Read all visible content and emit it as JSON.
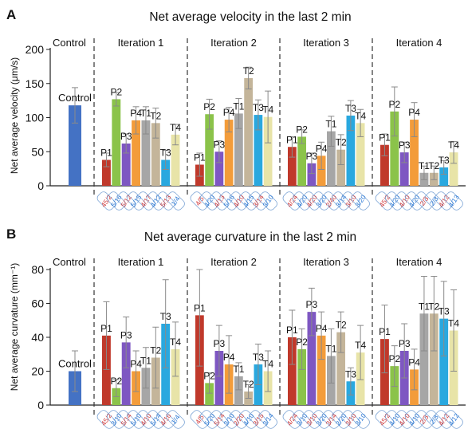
{
  "chart_data": [
    {
      "type": "bar",
      "panel_label": "A",
      "title": "Net average velocity in the last 2 min",
      "ylabel": "Net average velocity (μm/s)",
      "ylim": [
        0,
        200
      ],
      "yticks": [
        0,
        50,
        100,
        150,
        200
      ],
      "groups": [
        {
          "name": "Control",
          "bars": [
            {
              "label": "Control",
              "value": 118,
              "err": 26,
              "color": "#4472c4"
            }
          ],
          "counts": []
        },
        {
          "name": "Iteration 1",
          "bars": [
            {
              "label": "P1",
              "value": 38,
              "err": 10,
              "color": "#c0392b"
            },
            {
              "label": "P2",
              "value": 127,
              "err": 10,
              "color": "#8bc34a"
            },
            {
              "label": "P3",
              "value": 62,
              "err": 14,
              "color": "#7e57c2"
            },
            {
              "label": "P4",
              "value": 96,
              "err": 20,
              "color": "#f39c3a"
            },
            {
              "label": "T1",
              "value": 96,
              "err": 20,
              "color": "#a6a6a6"
            },
            {
              "label": "T2",
              "value": 92,
              "err": 22,
              "color": "#c4b59a"
            },
            {
              "label": "T3",
              "value": 38,
              "err": 14,
              "color": "#29a8df"
            },
            {
              "label": "T4",
              "value": 75,
              "err": 15,
              "color": "#e8e4a8"
            }
          ],
          "counts": [
            "45/2",
            "5/16",
            "5/12",
            "5/15",
            "4/17",
            "4/12",
            "5/13",
            "1/4"
          ]
        },
        {
          "name": "Iteration 2",
          "bars": [
            {
              "label": "P1",
              "value": 31,
              "err": 17,
              "color": "#c0392b"
            },
            {
              "label": "P2",
              "value": 105,
              "err": 22,
              "color": "#8bc34a"
            },
            {
              "label": "P3",
              "value": 50,
              "err": 16,
              "color": "#7e57c2"
            },
            {
              "label": "P4",
              "value": 97,
              "err": 18,
              "color": "#f39c3a"
            },
            {
              "label": "T1",
              "value": 106,
              "err": 22,
              "color": "#a6a6a6"
            },
            {
              "label": "T2",
              "value": 158,
              "err": 16,
              "color": "#c4b59a"
            },
            {
              "label": "T3",
              "value": 104,
              "err": 22,
              "color": "#29a8df"
            },
            {
              "label": "T4",
              "value": 101,
              "err": 38,
              "color": "#e8e4a8"
            }
          ],
          "counts": [
            "4/5",
            "4/20",
            "4/13",
            "5/16",
            "4/10",
            "4/15",
            "3/14",
            "3/10"
          ]
        },
        {
          "name": "Iteration 3",
          "bars": [
            {
              "label": "P1",
              "value": 57,
              "err": 15,
              "color": "#c0392b"
            },
            {
              "label": "P2",
              "value": 72,
              "err": 10,
              "color": "#8bc34a"
            },
            {
              "label": "P3",
              "value": 33,
              "err": 15,
              "color": "#7e57c2"
            },
            {
              "label": "P4",
              "value": 44,
              "err": 20,
              "color": "#f39c3a"
            },
            {
              "label": "T1",
              "value": 80,
              "err": 22,
              "color": "#a6a6a6"
            },
            {
              "label": "T2",
              "value": 53,
              "err": 22,
              "color": "#c4b59a"
            },
            {
              "label": "T3",
              "value": 103,
              "err": 22,
              "color": "#29a8df"
            },
            {
              "label": "T4",
              "value": 92,
              "err": 20,
              "color": "#e8e4a8"
            }
          ],
          "counts": [
            "4/24",
            "4/20",
            "4/20",
            "3/20",
            "2/40",
            "3/14",
            "3/10",
            "3/20"
          ]
        },
        {
          "name": "Iteration 4",
          "bars": [
            {
              "label": "P1",
              "value": 60,
              "err": 16,
              "color": "#c0392b"
            },
            {
              "label": "P2",
              "value": 109,
              "err": 36,
              "color": "#8bc34a"
            },
            {
              "label": "P3",
              "value": 49,
              "err": 15,
              "color": "#7e57c2"
            },
            {
              "label": "P4",
              "value": 97,
              "err": 25,
              "color": "#f39c3a"
            },
            {
              "label": "T1",
              "value": 19,
              "err": 10,
              "color": "#a6a6a6"
            },
            {
              "label": "T2",
              "value": 19,
              "err": 10,
              "color": "#c4b59a"
            },
            {
              "label": "T3",
              "value": 27,
              "err": 10,
              "color": "#29a8df"
            },
            {
              "label": "T4",
              "value": 49,
              "err": 16,
              "color": "#e8e4a8"
            }
          ],
          "counts": [
            "45/2",
            "4/20",
            "4/10",
            "4/20",
            "2/3",
            "2/3",
            "4/12",
            "4/13"
          ]
        }
      ]
    },
    {
      "type": "bar",
      "panel_label": "B",
      "title": "Net average curvature in the last 2 min",
      "ylabel": "Net average curvature (mm⁻¹)",
      "ylim": [
        0,
        80
      ],
      "yticks": [
        0,
        20,
        40,
        60,
        80
      ],
      "groups": [
        {
          "name": "Control",
          "bars": [
            {
              "label": "Control",
              "value": 20,
              "err": 12,
              "color": "#4472c4"
            }
          ],
          "counts": []
        },
        {
          "name": "Iteration 1",
          "bars": [
            {
              "label": "P1",
              "value": 41,
              "err": 20,
              "color": "#c0392b"
            },
            {
              "label": "P2",
              "value": 10,
              "err": 5,
              "color": "#8bc34a"
            },
            {
              "label": "P3",
              "value": 37,
              "err": 15,
              "color": "#7e57c2"
            },
            {
              "label": "P4",
              "value": 20,
              "err": 12,
              "color": "#f39c3a"
            },
            {
              "label": "T1",
              "value": 22,
              "err": 12,
              "color": "#a6a6a6"
            },
            {
              "label": "T2",
              "value": 28,
              "err": 18,
              "color": "#c4b59a"
            },
            {
              "label": "T3",
              "value": 48,
              "err": 26,
              "color": "#29a8df"
            },
            {
              "label": "T4",
              "value": 33,
              "err": 16,
              "color": "#e8e4a8"
            }
          ],
          "counts": [
            "45/2",
            "3/10",
            "5/14",
            "5/10",
            "4/10",
            "5/14",
            "4/16",
            "1/4"
          ]
        },
        {
          "name": "Iteration 2",
          "bars": [
            {
              "label": "P1",
              "value": 53,
              "err": 30,
              "color": "#c0392b"
            },
            {
              "label": "P2",
              "value": 13,
              "err": 6,
              "color": "#8bc34a"
            },
            {
              "label": "P3",
              "value": 32,
              "err": 15,
              "color": "#7e57c2"
            },
            {
              "label": "P4",
              "value": 24,
              "err": 17,
              "color": "#f39c3a"
            },
            {
              "label": "T1",
              "value": 17,
              "err": 8,
              "color": "#a6a6a6"
            },
            {
              "label": "T2",
              "value": 8,
              "err": 4,
              "color": "#c4b59a"
            },
            {
              "label": "T3",
              "value": 24,
              "err": 12,
              "color": "#29a8df"
            },
            {
              "label": "T4",
              "value": 20,
              "err": 12,
              "color": "#e8e4a8"
            }
          ],
          "counts": [
            "4/5",
            "5/20",
            "5/14",
            "3/10",
            "2/20",
            "4/10",
            "3/15",
            "3/14"
          ]
        },
        {
          "name": "Iteration 3",
          "bars": [
            {
              "label": "P1",
              "value": 40,
              "err": 16,
              "color": "#c0392b"
            },
            {
              "label": "P2",
              "value": 33,
              "err": 12,
              "color": "#8bc34a"
            },
            {
              "label": "P3",
              "value": 55,
              "err": 14,
              "color": "#7e57c2"
            },
            {
              "label": "P4",
              "value": 41,
              "err": 14,
              "color": "#f39c3a"
            },
            {
              "label": "T1",
              "value": 29,
              "err": 16,
              "color": "#a6a6a6"
            },
            {
              "label": "T2",
              "value": 43,
              "err": 12,
              "color": "#c4b59a"
            },
            {
              "label": "T3",
              "value": 14,
              "err": 8,
              "color": "#29a8df"
            },
            {
              "label": "T4",
              "value": 31,
              "err": 16,
              "color": "#e8e4a8"
            }
          ],
          "counts": [
            "4/24",
            "3/10",
            "3/10",
            "3/20",
            "3/14",
            "2/20",
            "3/10",
            "3/10"
          ]
        },
        {
          "name": "Iteration 4",
          "bars": [
            {
              "label": "P1",
              "value": 39,
              "err": 20,
              "color": "#c0392b"
            },
            {
              "label": "P2",
              "value": 23,
              "err": 12,
              "color": "#8bc34a"
            },
            {
              "label": "P3",
              "value": 32,
              "err": 16,
              "color": "#7e57c2"
            },
            {
              "label": "P4",
              "value": 21,
              "err": 12,
              "color": "#f39c3a"
            },
            {
              "label": "T1",
              "value": 54,
              "err": 22,
              "color": "#a6a6a6"
            },
            {
              "label": "T2",
              "value": 54,
              "err": 22,
              "color": "#c4b59a"
            },
            {
              "label": "T3",
              "value": 51,
              "err": 22,
              "color": "#29a8df"
            },
            {
              "label": "T4",
              "value": 44,
              "err": 24,
              "color": "#e8e4a8"
            }
          ],
          "counts": [
            "45/2",
            "4/10",
            "4/10",
            "4/10",
            "2/3",
            "2/3",
            "4/12",
            "4/12"
          ]
        }
      ]
    }
  ]
}
